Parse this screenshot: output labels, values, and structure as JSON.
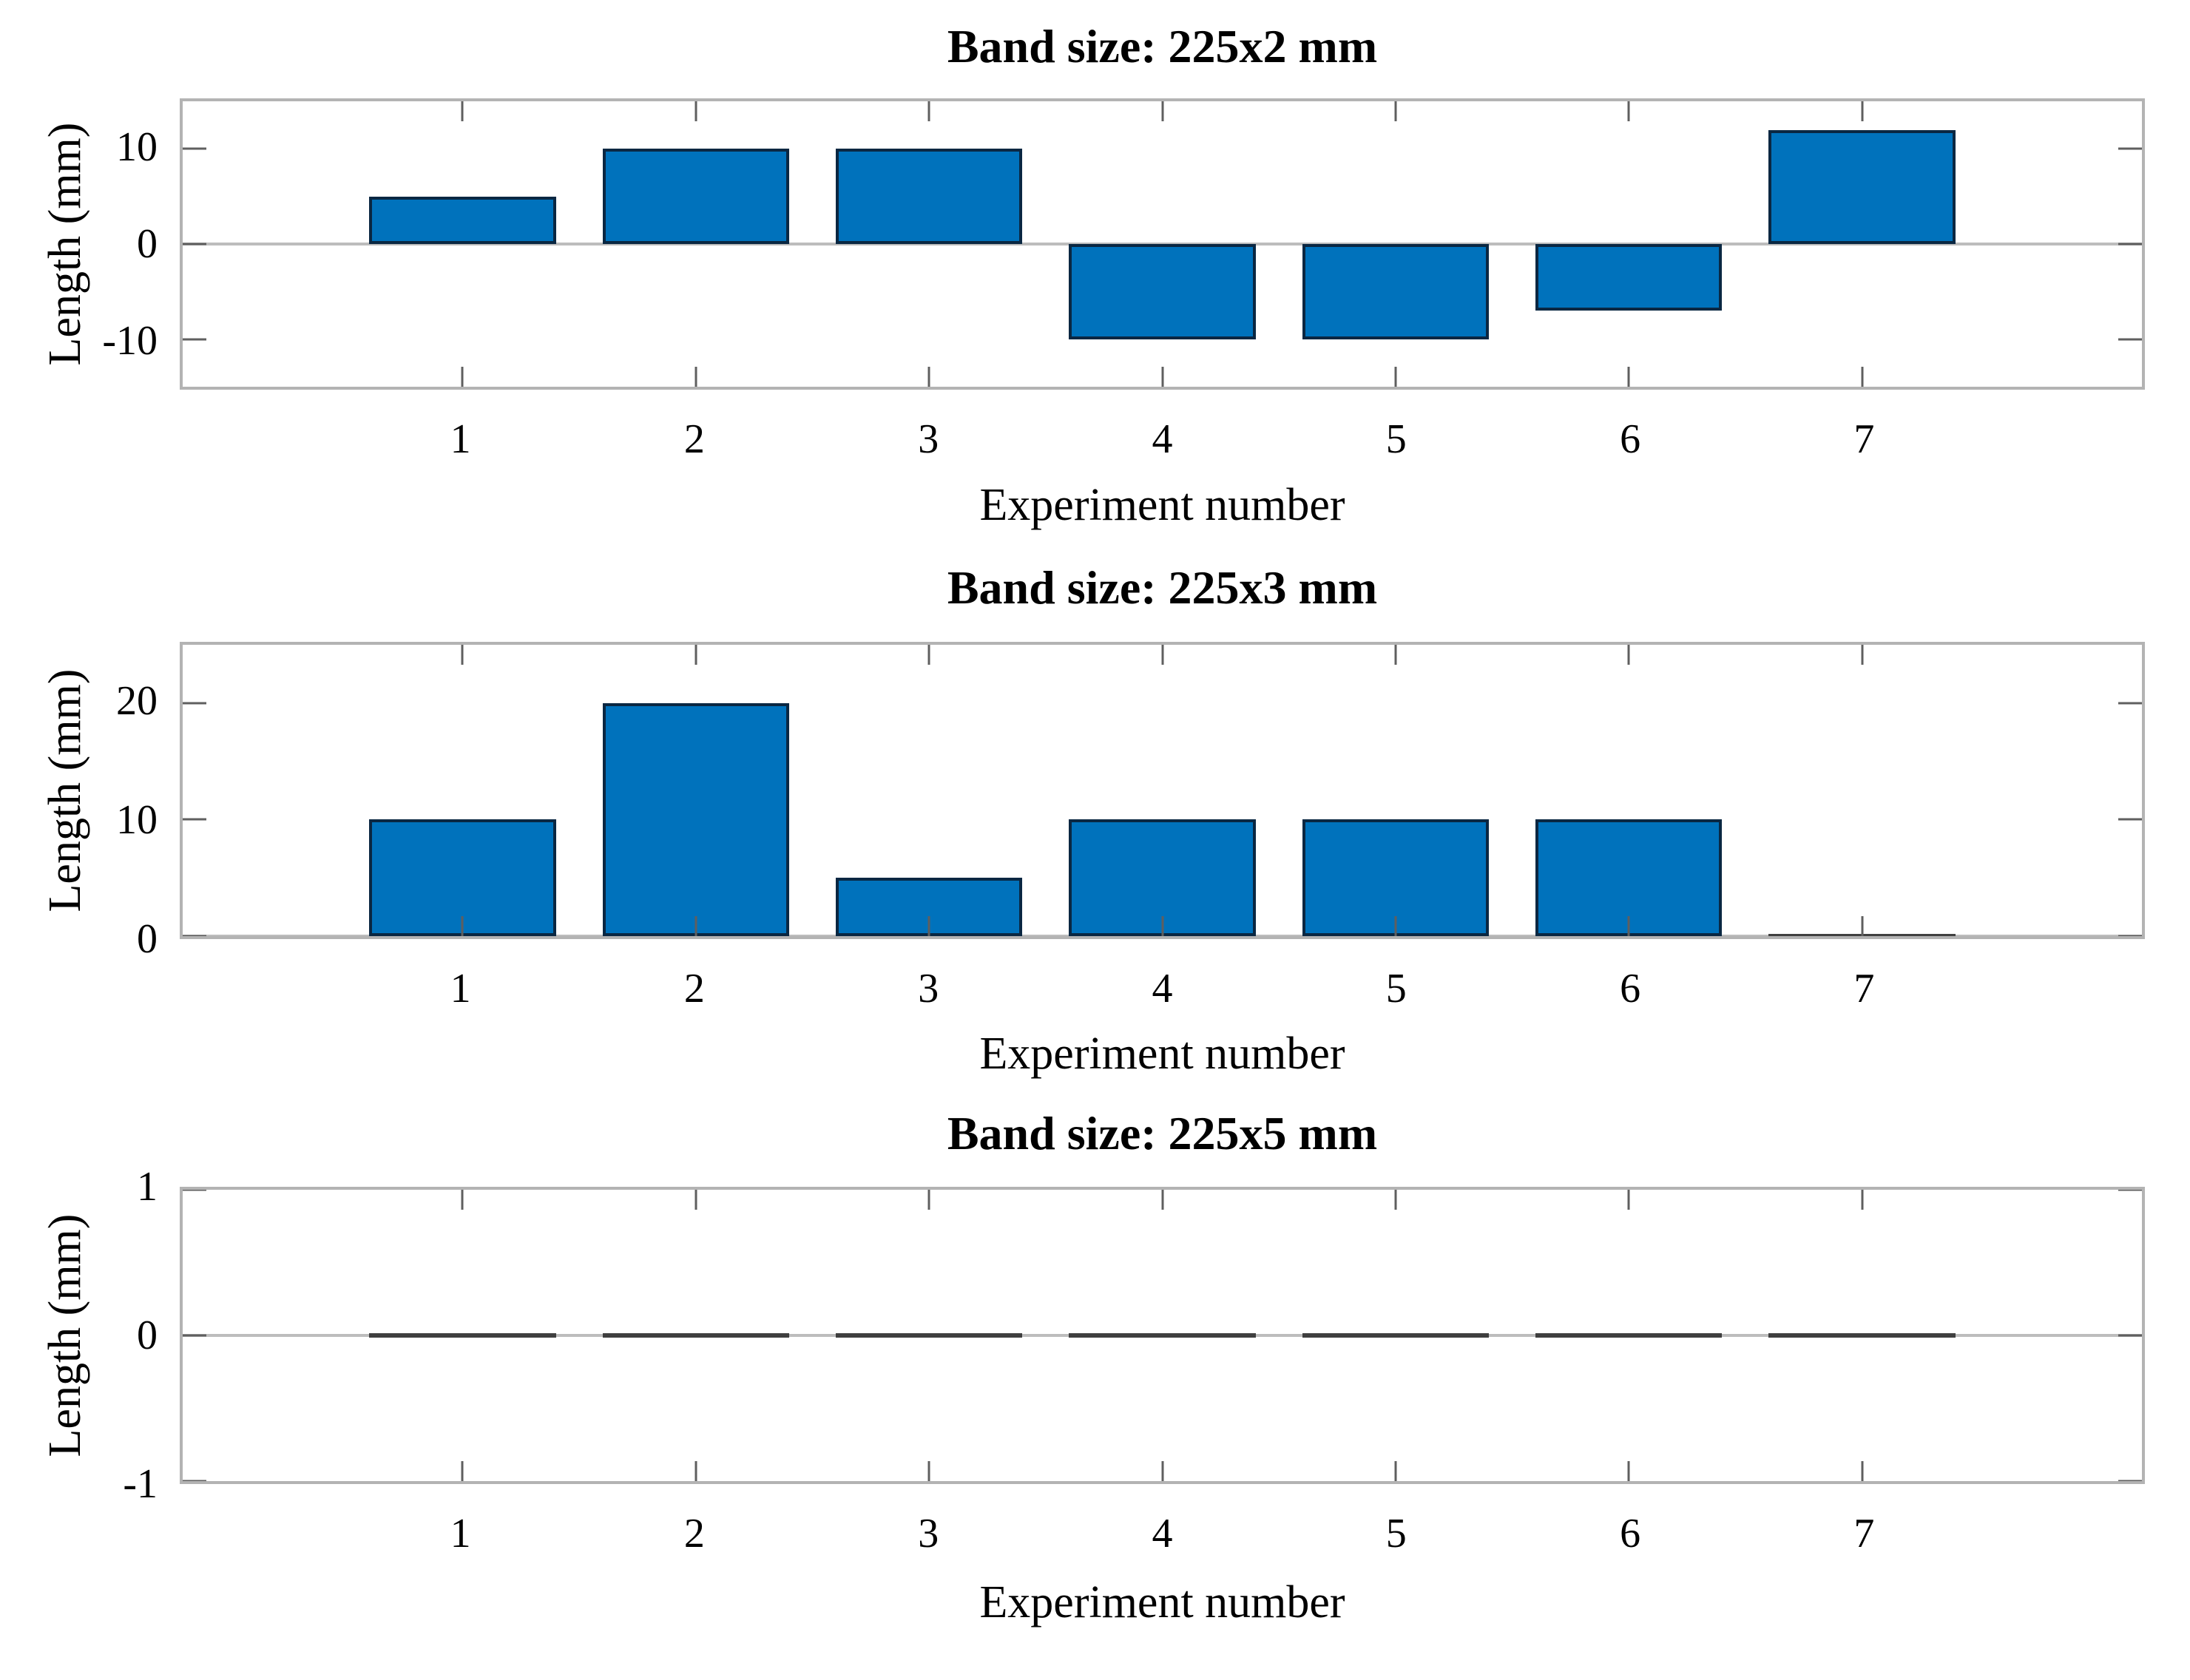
{
  "figure": {
    "background": "#ffffff",
    "bar_fill": "#0072bc",
    "bar_edge": "#0a2742",
    "box_color": "#b3b3b3",
    "tick_color": "#5f5f5f",
    "baseline_color": "#bdbdbd",
    "zero_bar_color": "#3f3f3f",
    "text_color": "#000000"
  },
  "chart_data": [
    {
      "type": "bar",
      "title": "Band size: 225x2 mm",
      "xlabel": "Experiment number",
      "ylabel": "Length (mm)",
      "categories": [
        1,
        2,
        3,
        4,
        5,
        6,
        7
      ],
      "values": [
        5,
        10,
        10,
        -10,
        -10,
        -7,
        12
      ],
      "yticks": [
        10,
        0,
        -10
      ],
      "ylim": [
        -15,
        15
      ],
      "xlim": [
        -0.2,
        8.2
      ],
      "bar_width": 0.8,
      "grid": false,
      "legend": null
    },
    {
      "type": "bar",
      "title": "Band size: 225x3 mm",
      "xlabel": "Experiment number",
      "ylabel": "Length (mm)",
      "categories": [
        1,
        2,
        3,
        4,
        5,
        6,
        7
      ],
      "values": [
        10,
        20,
        5,
        10,
        10,
        10,
        0
      ],
      "yticks": [
        20,
        10,
        0
      ],
      "ylim": [
        0,
        25
      ],
      "xlim": [
        -0.2,
        8.2
      ],
      "bar_width": 0.8,
      "grid": false,
      "legend": null
    },
    {
      "type": "bar",
      "title": "Band size: 225x5 mm",
      "xlabel": "Experiment number",
      "ylabel": "Length (mm)",
      "categories": [
        1,
        2,
        3,
        4,
        5,
        6,
        7
      ],
      "values": [
        0,
        0,
        0,
        0,
        0,
        0,
        0
      ],
      "yticks": [
        1,
        0,
        -1
      ],
      "ylim": [
        -1,
        1
      ],
      "xlim": [
        -0.2,
        8.2
      ],
      "bar_width": 0.8,
      "grid": false,
      "legend": null
    }
  ]
}
